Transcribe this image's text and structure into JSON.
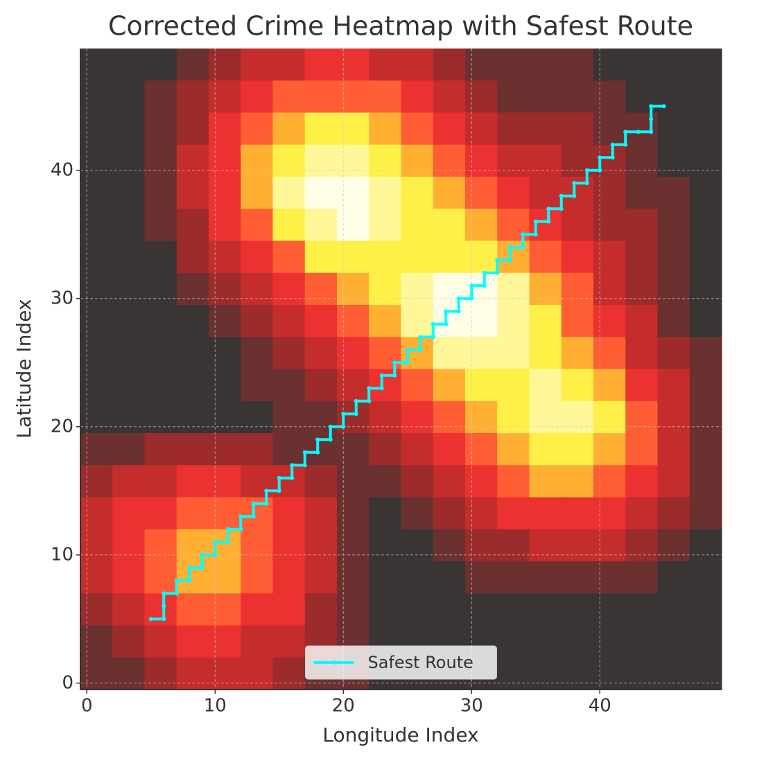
{
  "chart_data": {
    "type": "heatmap",
    "title": "Corrected Crime Heatmap with Safest Route",
    "x_label": "Longitude Index",
    "y_label": "Latitude Index",
    "xlim": [
      -0.5,
      49.5
    ],
    "ylim": [
      -0.5,
      49.5
    ],
    "xticks": [
      0,
      10,
      20,
      30,
      40
    ],
    "yticks": [
      0,
      10,
      20,
      30,
      40
    ],
    "grid": true,
    "legend": "lower center",
    "heatmap": {
      "zlim": [
        0,
        9
      ],
      "colormap": [
        "#3a3435",
        "#a82a2a",
        "#ff3333",
        "#ffee33",
        "#ffffe8"
      ],
      "values": [
        [
          0,
          0,
          0,
          1,
          2,
          3,
          3,
          4,
          4,
          3,
          3,
          2,
          1,
          1,
          1,
          1,
          0,
          0,
          0,
          0
        ],
        [
          0,
          0,
          1,
          2,
          3,
          4,
          5,
          5,
          5,
          5,
          4,
          3,
          2,
          1,
          1,
          1,
          1,
          0,
          0,
          0
        ],
        [
          0,
          0,
          1,
          2,
          4,
          5,
          6,
          7,
          7,
          6,
          5,
          4,
          3,
          2,
          2,
          2,
          1,
          1,
          0,
          0
        ],
        [
          0,
          0,
          1,
          3,
          4,
          6,
          7,
          8,
          8,
          7,
          6,
          5,
          4,
          3,
          3,
          2,
          2,
          1,
          0,
          0
        ],
        [
          0,
          0,
          1,
          3,
          4,
          6,
          8,
          9,
          9,
          8,
          7,
          6,
          5,
          4,
          3,
          3,
          2,
          1,
          1,
          0
        ],
        [
          0,
          0,
          1,
          2,
          4,
          5,
          7,
          8,
          9,
          8,
          7,
          7,
          6,
          5,
          4,
          3,
          2,
          2,
          1,
          0
        ],
        [
          0,
          0,
          0,
          2,
          3,
          4,
          5,
          7,
          7,
          7,
          7,
          7,
          7,
          6,
          5,
          4,
          3,
          2,
          1,
          0
        ],
        [
          0,
          0,
          0,
          1,
          2,
          3,
          4,
          5,
          6,
          7,
          8,
          9,
          9,
          8,
          6,
          5,
          3,
          2,
          1,
          0
        ],
        [
          0,
          0,
          0,
          0,
          1,
          2,
          3,
          4,
          5,
          6,
          8,
          9,
          9,
          8,
          7,
          5,
          4,
          3,
          1,
          0
        ],
        [
          0,
          0,
          0,
          0,
          0,
          1,
          2,
          3,
          4,
          5,
          6,
          8,
          8,
          8,
          7,
          6,
          5,
          3,
          2,
          1
        ],
        [
          0,
          0,
          0,
          0,
          0,
          1,
          1,
          2,
          3,
          4,
          5,
          6,
          7,
          7,
          8,
          7,
          6,
          4,
          3,
          1
        ],
        [
          0,
          0,
          0,
          0,
          0,
          0,
          1,
          1,
          2,
          3,
          4,
          5,
          6,
          7,
          8,
          8,
          7,
          5,
          3,
          1
        ],
        [
          1,
          1,
          2,
          2,
          2,
          2,
          1,
          1,
          1,
          2,
          3,
          4,
          5,
          6,
          7,
          7,
          6,
          5,
          3,
          1
        ],
        [
          2,
          3,
          3,
          4,
          4,
          3,
          3,
          2,
          1,
          1,
          2,
          3,
          4,
          5,
          6,
          6,
          5,
          4,
          3,
          1
        ],
        [
          3,
          4,
          4,
          5,
          5,
          5,
          4,
          3,
          1,
          0,
          1,
          2,
          3,
          4,
          4,
          4,
          4,
          3,
          2,
          1
        ],
        [
          3,
          4,
          5,
          6,
          6,
          5,
          4,
          3,
          1,
          0,
          0,
          1,
          2,
          2,
          3,
          3,
          3,
          2,
          1,
          0
        ],
        [
          3,
          4,
          5,
          6,
          6,
          5,
          4,
          3,
          1,
          0,
          0,
          0,
          1,
          1,
          1,
          1,
          1,
          1,
          0,
          0
        ],
        [
          2,
          3,
          4,
          5,
          5,
          4,
          4,
          2,
          1,
          0,
          0,
          0,
          0,
          0,
          0,
          0,
          0,
          0,
          0,
          0
        ],
        [
          1,
          2,
          3,
          4,
          4,
          3,
          3,
          2,
          1,
          0,
          0,
          0,
          0,
          0,
          0,
          0,
          0,
          0,
          0,
          0
        ],
        [
          1,
          1,
          2,
          3,
          3,
          3,
          2,
          1,
          1,
          0,
          0,
          0,
          0,
          0,
          0,
          0,
          0,
          0,
          0,
          0
        ]
      ]
    },
    "series": [
      {
        "name": "Safest Route",
        "color": "#00ffff",
        "x": [
          5,
          6,
          6,
          6,
          7,
          7,
          8,
          8,
          9,
          9,
          10,
          10,
          11,
          11,
          12,
          12,
          13,
          13,
          14,
          14,
          15,
          15,
          16,
          16,
          17,
          17,
          18,
          18,
          19,
          19,
          20,
          20,
          21,
          21,
          22,
          22,
          23,
          23,
          24,
          24,
          25,
          25,
          26,
          26,
          27,
          27,
          28,
          28,
          29,
          29,
          30,
          30,
          31,
          31,
          32,
          32,
          33,
          33,
          34,
          34,
          35,
          35,
          36,
          36,
          37,
          37,
          38,
          38,
          39,
          39,
          40,
          40,
          41,
          41,
          42,
          42,
          43,
          44,
          44,
          44,
          45
        ],
        "y": [
          5,
          5,
          6,
          7,
          7,
          8,
          8,
          9,
          9,
          10,
          10,
          11,
          11,
          12,
          12,
          13,
          13,
          14,
          14,
          15,
          15,
          16,
          16,
          17,
          17,
          18,
          18,
          19,
          19,
          20,
          20,
          21,
          21,
          22,
          22,
          23,
          23,
          24,
          24,
          25,
          25,
          26,
          26,
          27,
          27,
          28,
          28,
          29,
          29,
          30,
          30,
          31,
          31,
          32,
          32,
          33,
          33,
          34,
          34,
          35,
          35,
          36,
          36,
          37,
          37,
          38,
          38,
          39,
          39,
          40,
          40,
          41,
          41,
          42,
          42,
          43,
          43,
          43,
          44,
          45,
          45
        ]
      }
    ]
  }
}
